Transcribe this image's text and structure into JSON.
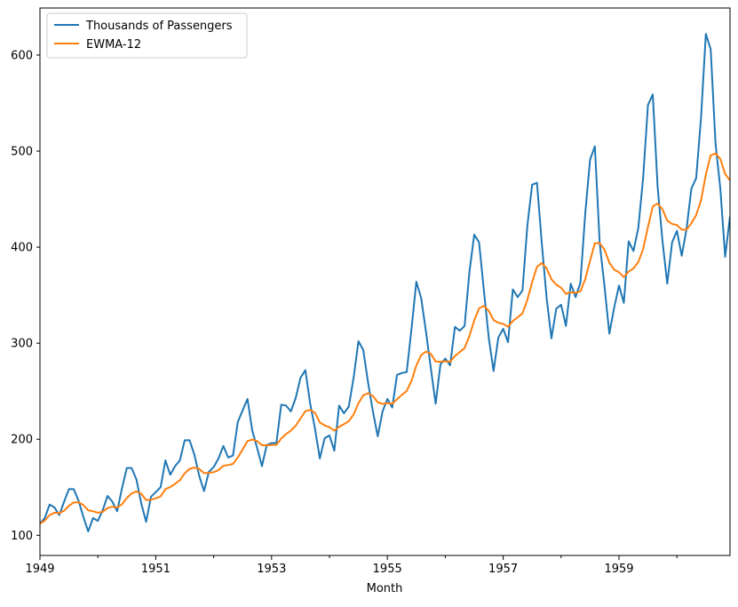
{
  "chart_data": {
    "type": "line",
    "title": "",
    "xlabel": "Month",
    "ylabel": "",
    "x_start": "1949-01",
    "x_end": "1960-12",
    "xlim": [
      1949.0,
      1960.917
    ],
    "ylim": [
      79,
      649
    ],
    "x_ticks": [
      {
        "value": 1949,
        "label": "1949"
      },
      {
        "value": 1951,
        "label": "1951"
      },
      {
        "value": 1953,
        "label": "1953"
      },
      {
        "value": 1955,
        "label": "1955"
      },
      {
        "value": 1957,
        "label": "1957"
      },
      {
        "value": 1959,
        "label": "1959"
      }
    ],
    "x_minor_ticks": [
      1950,
      1952,
      1954,
      1956,
      1958,
      1960
    ],
    "y_ticks": [
      {
        "value": 100,
        "label": "100"
      },
      {
        "value": 200,
        "label": "200"
      },
      {
        "value": 300,
        "label": "300"
      },
      {
        "value": 400,
        "label": "400"
      },
      {
        "value": 500,
        "label": "500"
      },
      {
        "value": 600,
        "label": "600"
      }
    ],
    "grid": false,
    "legend_position": "top-left",
    "series": [
      {
        "name": "Thousands of Passengers",
        "color": "#1f77b4",
        "values": [
          112,
          118,
          132,
          129,
          121,
          135,
          148,
          148,
          136,
          119,
          104,
          118,
          115,
          126,
          141,
          135,
          125,
          149,
          170,
          170,
          158,
          133,
          114,
          140,
          145,
          150,
          178,
          163,
          172,
          178,
          199,
          199,
          184,
          162,
          146,
          166,
          171,
          180,
          193,
          181,
          183,
          218,
          230,
          242,
          209,
          191,
          172,
          194,
          196,
          196,
          236,
          235,
          229,
          243,
          264,
          272,
          237,
          211,
          180,
          201,
          204,
          188,
          235,
          227,
          234,
          264,
          302,
          293,
          259,
          229,
          203,
          229,
          242,
          233,
          267,
          269,
          270,
          315,
          364,
          347,
          312,
          274,
          237,
          278,
          284,
          277,
          317,
          313,
          318,
          374,
          413,
          405,
          355,
          306,
          271,
          306,
          315,
          301,
          356,
          348,
          355,
          422,
          465,
          467,
          404,
          347,
          305,
          336,
          340,
          318,
          362,
          348,
          363,
          435,
          491,
          505,
          404,
          359,
          310,
          337,
          360,
          342,
          406,
          396,
          420,
          472,
          548,
          559,
          463,
          407,
          362,
          405,
          417,
          391,
          419,
          461,
          472,
          535,
          622,
          606,
          508,
          461,
          390,
          432
        ]
      },
      {
        "name": "EWMA-12",
        "color": "#ff7f0e",
        "values": [
          112.0,
          115.3,
          121.1,
          123.5,
          123.0,
          125.6,
          130.7,
          134.1,
          134.4,
          131.4,
          126.0,
          125.0,
          123.5,
          124.4,
          128.3,
          129.7,
          129.0,
          132.3,
          138.8,
          143.6,
          145.7,
          143.2,
          136.7,
          137.0,
          138.5,
          140.5,
          148.1,
          150.2,
          153.6,
          157.4,
          164.5,
          169.2,
          170.5,
          169.1,
          164.7,
          165.0,
          165.7,
          167.9,
          172.3,
          173.2,
          174.3,
          181.1,
          189.3,
          198.0,
          199.7,
          198.0,
          193.8,
          193.8,
          194.1,
          194.2,
          200.7,
          205.4,
          209.0,
          214.1,
          221.7,
          229.2,
          230.5,
          227.6,
          217.5,
          214.3,
          212.6,
          208.9,
          213.0,
          215.7,
          218.8,
          225.8,
          237.5,
          245.8,
          247.8,
          245.1,
          238.4,
          236.8,
          237.6,
          236.9,
          241.7,
          246.2,
          250.2,
          260.8,
          276.7,
          287.6,
          291.3,
          288.9,
          280.9,
          280.7,
          281.2,
          280.6,
          286.6,
          290.8,
          294.9,
          307.6,
          323.7,
          336.2,
          338.9,
          333.8,
          324.1,
          321.2,
          320.1,
          317.1,
          323.1,
          327.0,
          331.1,
          345.1,
          363.6,
          379.5,
          383.5,
          377.8,
          366.6,
          361.0,
          357.7,
          351.4,
          353.1,
          352.3,
          354.1,
          366.6,
          385.7,
          404.1,
          404.1,
          397.3,
          383.8,
          376.6,
          373.8,
          368.9,
          374.6,
          377.9,
          384.4,
          398.0,
          421.1,
          442.3,
          445.5,
          439.5,
          427.6,
          424.2,
          423.0,
          418.2,
          418.3,
          424.9,
          433.4,
          449.0,
          475.6,
          495.6,
          497.5,
          491.9,
          476.2,
          469.4
        ]
      }
    ]
  }
}
